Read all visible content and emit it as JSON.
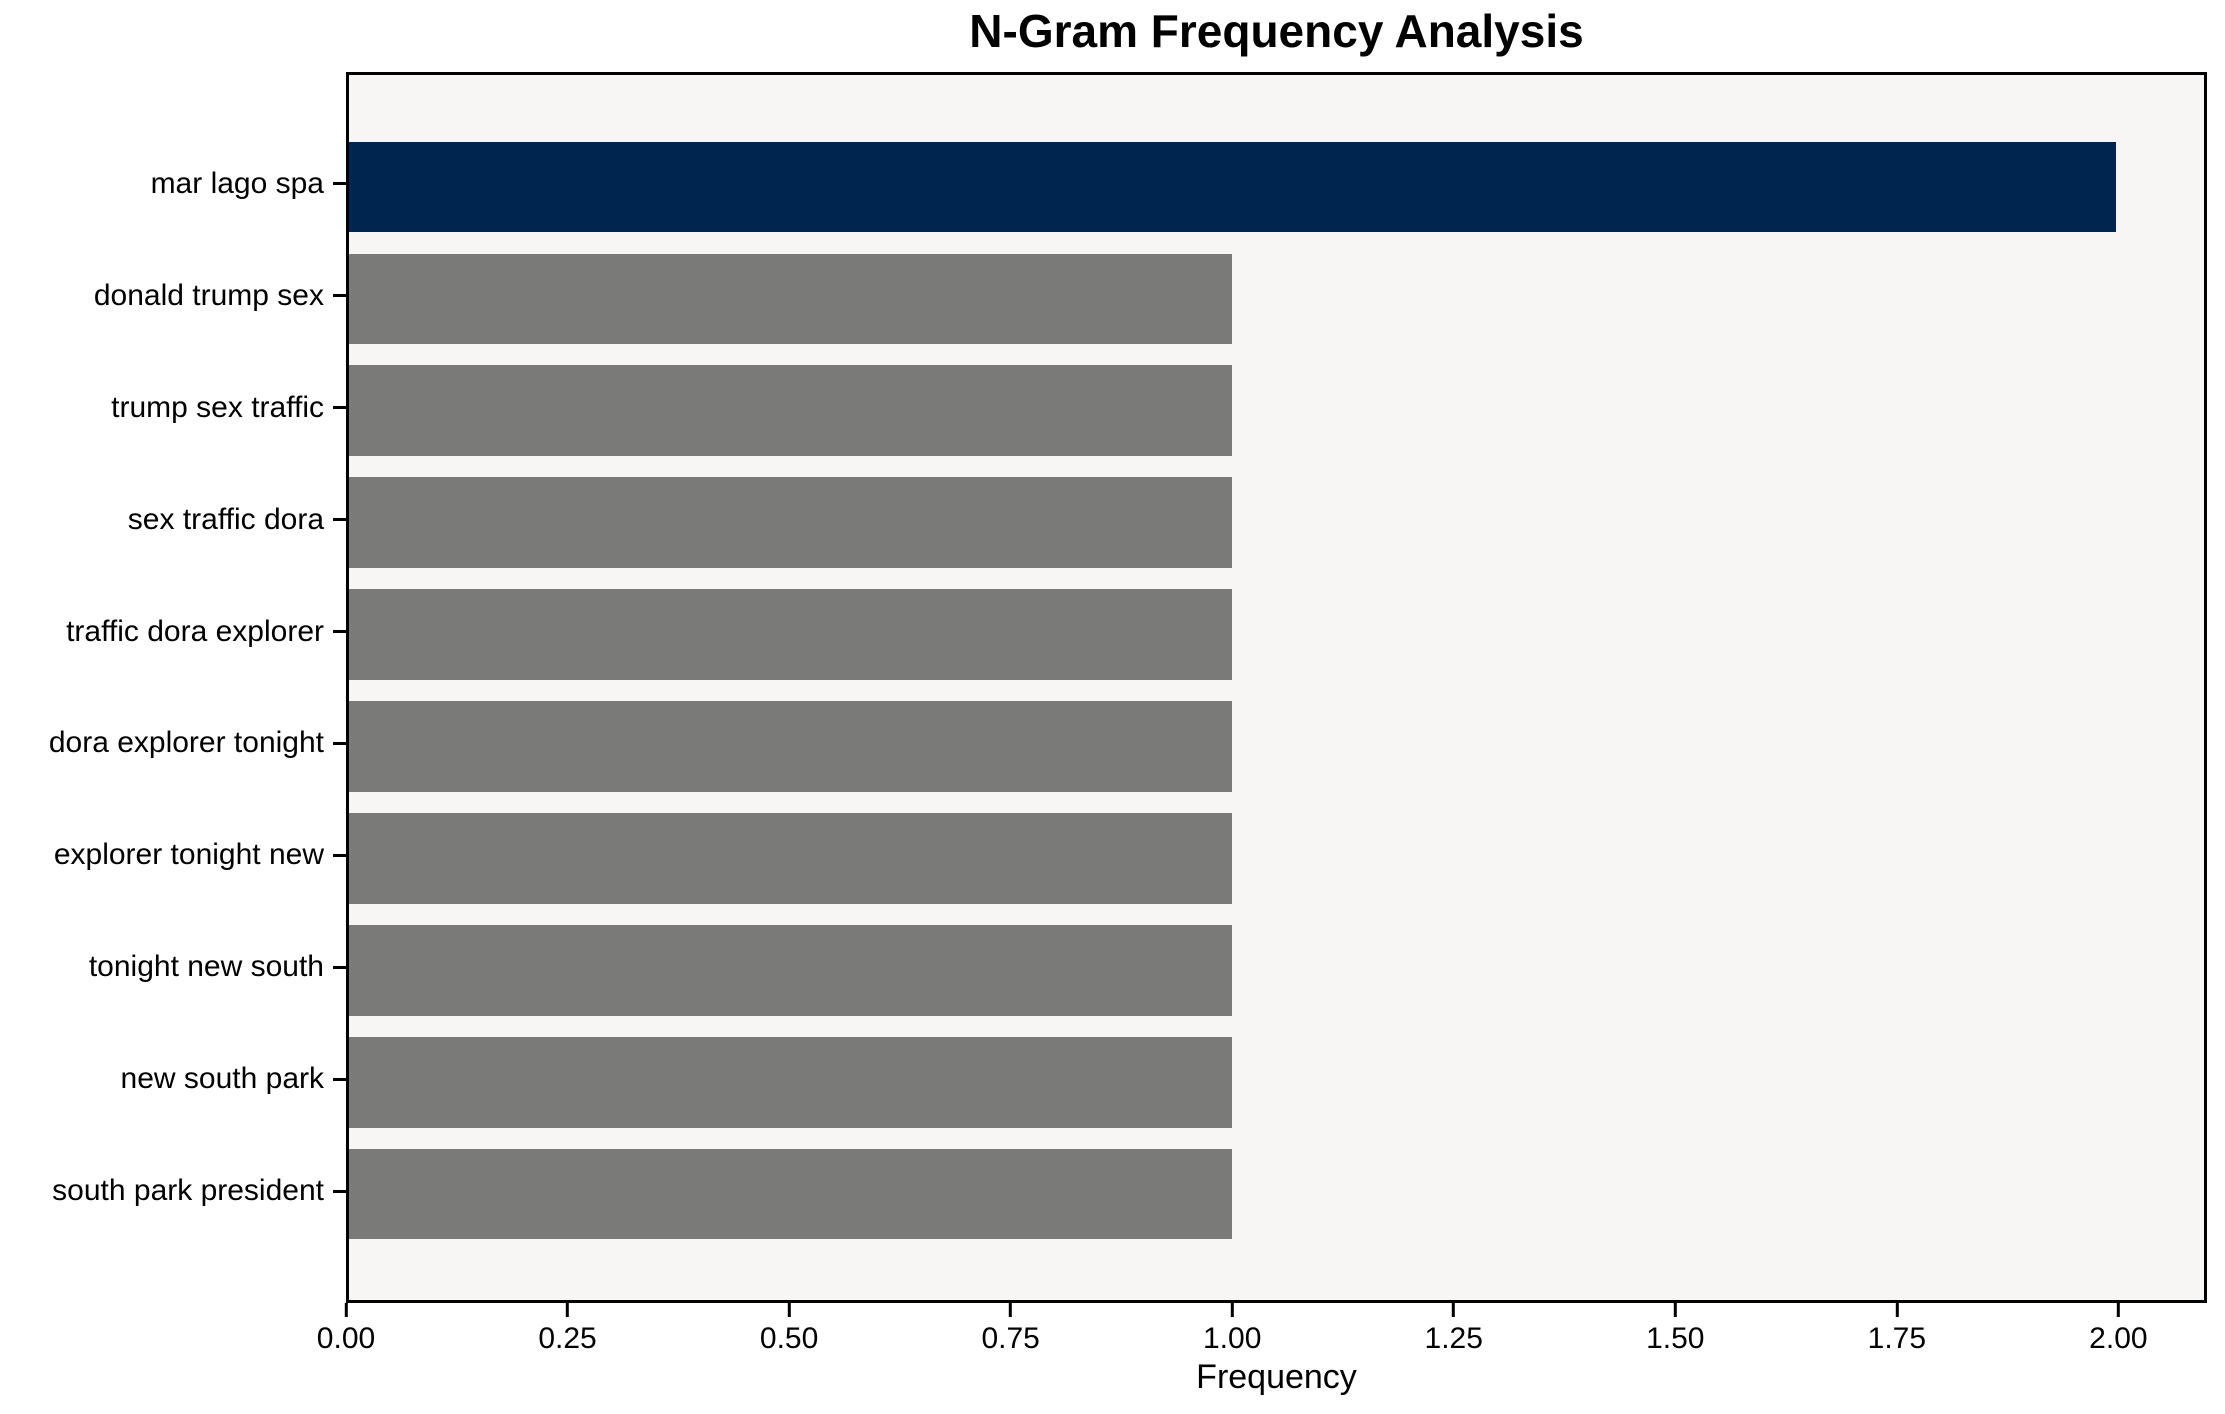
{
  "chart_data": {
    "type": "bar",
    "orientation": "horizontal",
    "title": "N-Gram Frequency Analysis",
    "xlabel": "Frequency",
    "ylabel": "",
    "categories": [
      "mar lago spa",
      "donald trump sex",
      "trump sex traffic",
      "sex traffic dora",
      "traffic dora explorer",
      "dora explorer tonight",
      "explorer tonight new",
      "tonight new south",
      "new south park",
      "south park president"
    ],
    "values": [
      2,
      1,
      1,
      1,
      1,
      1,
      1,
      1,
      1,
      1
    ],
    "bar_colors": [
      "#00254e",
      "#7a7a78",
      "#7a7a78",
      "#7a7a78",
      "#7a7a78",
      "#7a7a78",
      "#7a7a78",
      "#7a7a78",
      "#7a7a78",
      "#7a7a78"
    ],
    "xlim": [
      0,
      2.1
    ],
    "xtick_values": [
      0,
      0.25,
      0.5,
      0.75,
      1.0,
      1.25,
      1.5,
      1.75,
      2.0
    ],
    "xtick_labels": [
      "0.00",
      "0.25",
      "0.50",
      "0.75",
      "1.00",
      "1.25",
      "1.50",
      "1.75",
      "2.00"
    ],
    "grid": false,
    "legend": "none",
    "colors": {
      "highlight_bar": "#00254e",
      "default_bar": "#7a7a78",
      "plot_background": "#f7f6f5",
      "figure_background": "#ffffff",
      "spine": "#000000",
      "text": "#000000"
    }
  }
}
